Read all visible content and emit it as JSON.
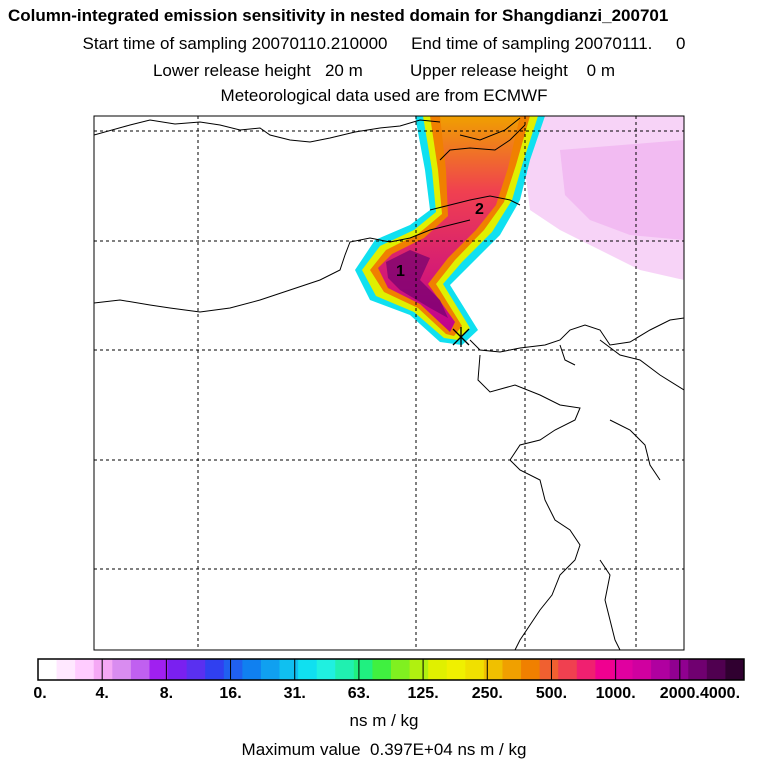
{
  "header": {
    "title": "Column-integrated emission sensitivity in nested domain for Shangdianzi_200701",
    "line2": "Start time of sampling 20070110.210000     End time of sampling 20070111.     0",
    "line3": "Lower release height   20 m          Upper release height    0 m",
    "line4": "Meteorological data used are from ECMWF"
  },
  "map": {
    "markers": [
      "1",
      "2"
    ]
  },
  "colorbar": {
    "labels": [
      "0.",
      "4.",
      "8.",
      "16.",
      "31.",
      "63.",
      "125.",
      "250.",
      "500.",
      "1000.",
      "2000.",
      "4000."
    ],
    "colors": [
      "#ffffff",
      "#ffe8ff",
      "#ffccff",
      "#f5a8f5",
      "#d98cf0",
      "#c060f0",
      "#a020f0",
      "#7a20f0",
      "#5a30f0",
      "#3040f0",
      "#2060f0",
      "#1080f0",
      "#10a0f0",
      "#10c0f0",
      "#10e0f0",
      "#20f0e0",
      "#20f0b0",
      "#20f080",
      "#40f040",
      "#80f020",
      "#b0f010",
      "#e0f000",
      "#f0f000",
      "#f0e000",
      "#f0c000",
      "#f0a000",
      "#f08000",
      "#f06030",
      "#f04050",
      "#f02070",
      "#f00090",
      "#e000a0",
      "#d000a0",
      "#b000a0",
      "#900090",
      "#700070",
      "#500050",
      "#300030"
    ],
    "units": "ns m / kg"
  },
  "footer": {
    "max_value": "Maximum value  0.397E+04 ns m / kg"
  }
}
